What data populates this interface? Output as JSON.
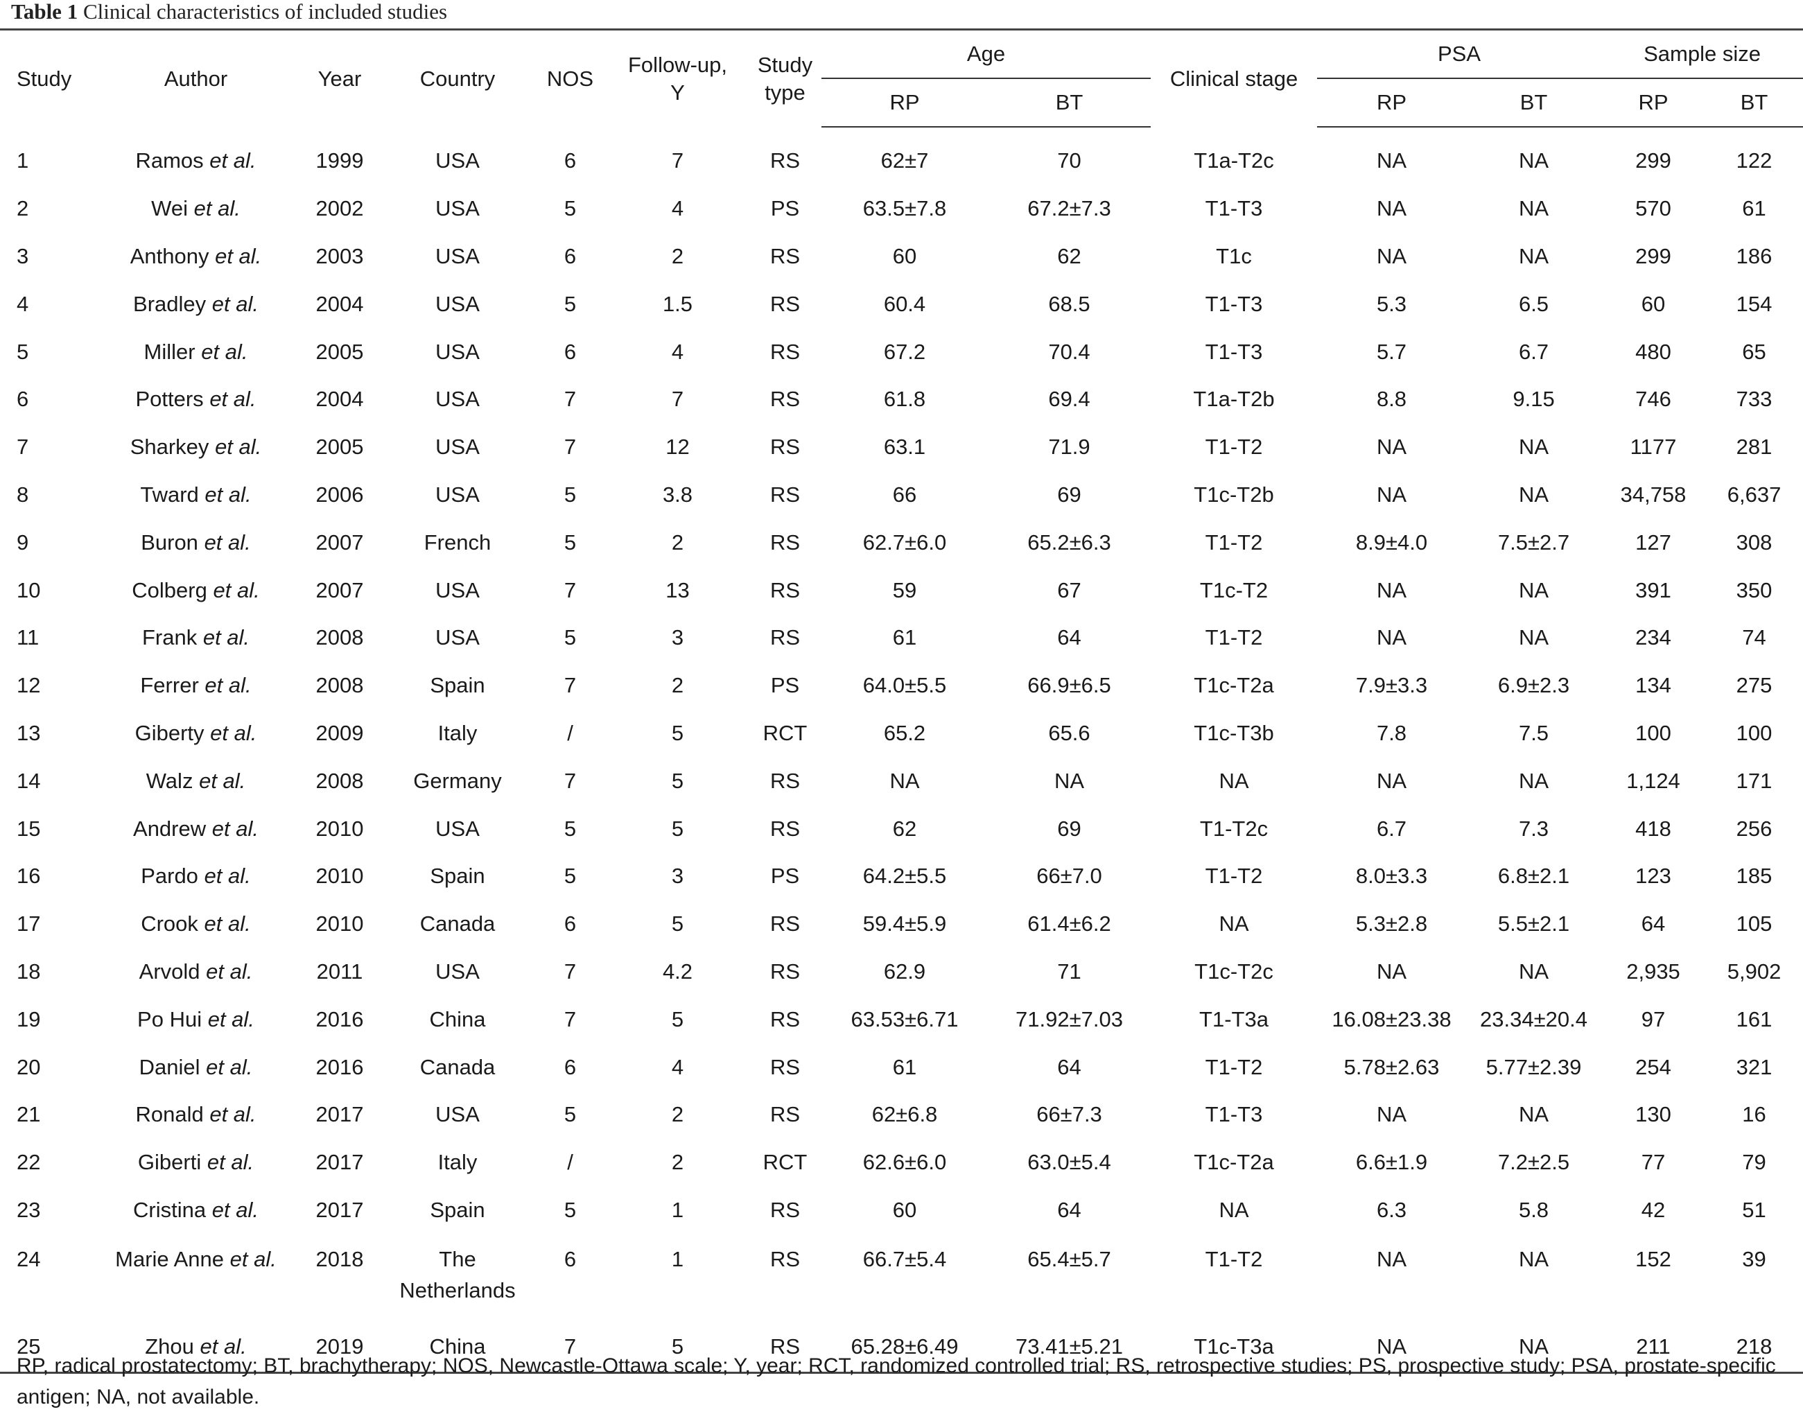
{
  "caption": {
    "label": "Table 1",
    "title": "Clinical characteristics of included studies"
  },
  "headers": {
    "study": "Study",
    "author": "Author",
    "year": "Year",
    "country": "Country",
    "nos": "NOS",
    "followup_line1": "Follow-up,",
    "followup_line2": "Y",
    "studytype_line1": "Study",
    "studytype_line2": "type",
    "age": "Age",
    "clinical_stage": "Clinical stage",
    "psa": "PSA",
    "sample_size": "Sample size",
    "rp": "RP",
    "bt": "BT"
  },
  "rows": [
    {
      "study": "1",
      "author": "Ramos",
      "year": "1999",
      "country": "USA",
      "country2": "",
      "nos": "6",
      "followup": "7",
      "type": "RS",
      "age_rp": "62±7",
      "age_bt": "70",
      "stage": "T1a-T2c",
      "psa_rp": "NA",
      "psa_bt": "NA",
      "n_rp": "299",
      "n_bt": "122"
    },
    {
      "study": "2",
      "author": "Wei",
      "year": "2002",
      "country": "USA",
      "country2": "",
      "nos": "5",
      "followup": "4",
      "type": "PS",
      "age_rp": "63.5±7.8",
      "age_bt": "67.2±7.3",
      "stage": "T1-T3",
      "psa_rp": "NA",
      "psa_bt": "NA",
      "n_rp": "570",
      "n_bt": "61"
    },
    {
      "study": "3",
      "author": "Anthony",
      "year": "2003",
      "country": "USA",
      "country2": "",
      "nos": "6",
      "followup": "2",
      "type": "RS",
      "age_rp": "60",
      "age_bt": "62",
      "stage": "T1c",
      "psa_rp": "NA",
      "psa_bt": "NA",
      "n_rp": "299",
      "n_bt": "186"
    },
    {
      "study": "4",
      "author": "Bradley",
      "year": "2004",
      "country": "USA",
      "country2": "",
      "nos": "5",
      "followup": "1.5",
      "type": "RS",
      "age_rp": "60.4",
      "age_bt": "68.5",
      "stage": "T1-T3",
      "psa_rp": "5.3",
      "psa_bt": "6.5",
      "n_rp": "60",
      "n_bt": "154"
    },
    {
      "study": "5",
      "author": "Miller",
      "year": "2005",
      "country": "USA",
      "country2": "",
      "nos": "6",
      "followup": "4",
      "type": "RS",
      "age_rp": "67.2",
      "age_bt": "70.4",
      "stage": "T1-T3",
      "psa_rp": "5.7",
      "psa_bt": "6.7",
      "n_rp": "480",
      "n_bt": "65"
    },
    {
      "study": "6",
      "author": "Potters",
      "year": "2004",
      "country": "USA",
      "country2": "",
      "nos": "7",
      "followup": "7",
      "type": "RS",
      "age_rp": "61.8",
      "age_bt": "69.4",
      "stage": "T1a-T2b",
      "psa_rp": "8.8",
      "psa_bt": "9.15",
      "n_rp": "746",
      "n_bt": "733"
    },
    {
      "study": "7",
      "author": "Sharkey",
      "year": "2005",
      "country": "USA",
      "country2": "",
      "nos": "7",
      "followup": "12",
      "type": "RS",
      "age_rp": "63.1",
      "age_bt": "71.9",
      "stage": "T1-T2",
      "psa_rp": "NA",
      "psa_bt": "NA",
      "n_rp": "1177",
      "n_bt": "281"
    },
    {
      "study": "8",
      "author": "Tward",
      "year": "2006",
      "country": "USA",
      "country2": "",
      "nos": "5",
      "followup": "3.8",
      "type": "RS",
      "age_rp": "66",
      "age_bt": "69",
      "stage": "T1c-T2b",
      "psa_rp": "NA",
      "psa_bt": "NA",
      "n_rp": "34,758",
      "n_bt": "6,637"
    },
    {
      "study": "9",
      "author": "Buron",
      "year": "2007",
      "country": "French",
      "country2": "",
      "nos": "5",
      "followup": "2",
      "type": "RS",
      "age_rp": "62.7±6.0",
      "age_bt": "65.2±6.3",
      "stage": "T1-T2",
      "psa_rp": "8.9±4.0",
      "psa_bt": "7.5±2.7",
      "n_rp": "127",
      "n_bt": "308"
    },
    {
      "study": "10",
      "author": "Colberg",
      "year": "2007",
      "country": "USA",
      "country2": "",
      "nos": "7",
      "followup": "13",
      "type": "RS",
      "age_rp": "59",
      "age_bt": "67",
      "stage": "T1c-T2",
      "psa_rp": "NA",
      "psa_bt": "NA",
      "n_rp": "391",
      "n_bt": "350"
    },
    {
      "study": "11",
      "author": "Frank",
      "year": "2008",
      "country": "USA",
      "country2": "",
      "nos": "5",
      "followup": "3",
      "type": "RS",
      "age_rp": "61",
      "age_bt": "64",
      "stage": "T1-T2",
      "psa_rp": "NA",
      "psa_bt": "NA",
      "n_rp": "234",
      "n_bt": "74"
    },
    {
      "study": "12",
      "author": "Ferrer",
      "year": "2008",
      "country": "Spain",
      "country2": "",
      "nos": "7",
      "followup": "2",
      "type": "PS",
      "age_rp": "64.0±5.5",
      "age_bt": "66.9±6.5",
      "stage": "T1c-T2a",
      "psa_rp": "7.9±3.3",
      "psa_bt": "6.9±2.3",
      "n_rp": "134",
      "n_bt": "275"
    },
    {
      "study": "13",
      "author": "Giberty",
      "year": "2009",
      "country": "Italy",
      "country2": "",
      "nos": "/",
      "followup": "5",
      "type": "RCT",
      "age_rp": "65.2",
      "age_bt": "65.6",
      "stage": "T1c-T3b",
      "psa_rp": "7.8",
      "psa_bt": "7.5",
      "n_rp": "100",
      "n_bt": "100"
    },
    {
      "study": "14",
      "author": "Walz",
      "year": "2008",
      "country": "Germany",
      "country2": "",
      "nos": "7",
      "followup": "5",
      "type": "RS",
      "age_rp": "NA",
      "age_bt": "NA",
      "stage": "NA",
      "psa_rp": "NA",
      "psa_bt": "NA",
      "n_rp": "1,124",
      "n_bt": "171"
    },
    {
      "study": "15",
      "author": "Andrew",
      "year": "2010",
      "country": "USA",
      "country2": "",
      "nos": "5",
      "followup": "5",
      "type": "RS",
      "age_rp": "62",
      "age_bt": "69",
      "stage": "T1-T2c",
      "psa_rp": "6.7",
      "psa_bt": "7.3",
      "n_rp": "418",
      "n_bt": "256"
    },
    {
      "study": "16",
      "author": "Pardo",
      "year": "2010",
      "country": "Spain",
      "country2": "",
      "nos": "5",
      "followup": "3",
      "type": "PS",
      "age_rp": "64.2±5.5",
      "age_bt": "66±7.0",
      "stage": "T1-T2",
      "psa_rp": "8.0±3.3",
      "psa_bt": "6.8±2.1",
      "n_rp": "123",
      "n_bt": "185"
    },
    {
      "study": "17",
      "author": "Crook",
      "year": "2010",
      "country": "Canada",
      "country2": "",
      "nos": "6",
      "followup": "5",
      "type": "RS",
      "age_rp": "59.4±5.9",
      "age_bt": "61.4±6.2",
      "stage": "NA",
      "psa_rp": "5.3±2.8",
      "psa_bt": "5.5±2.1",
      "n_rp": "64",
      "n_bt": "105"
    },
    {
      "study": "18",
      "author": "Arvold",
      "year": "2011",
      "country": "USA",
      "country2": "",
      "nos": "7",
      "followup": "4.2",
      "type": "RS",
      "age_rp": "62.9",
      "age_bt": "71",
      "stage": "T1c-T2c",
      "psa_rp": "NA",
      "psa_bt": "NA",
      "n_rp": "2,935",
      "n_bt": "5,902"
    },
    {
      "study": "19",
      "author": "Po Hui",
      "year": "2016",
      "country": "China",
      "country2": "",
      "nos": "7",
      "followup": "5",
      "type": "RS",
      "age_rp": "63.53±6.71",
      "age_bt": "71.92±7.03",
      "stage": "T1-T3a",
      "psa_rp": "16.08±23.38",
      "psa_bt": "23.34±20.4",
      "n_rp": "97",
      "n_bt": "161"
    },
    {
      "study": "20",
      "author": "Daniel",
      "year": "2016",
      "country": "Canada",
      "country2": "",
      "nos": "6",
      "followup": "4",
      "type": "RS",
      "age_rp": "61",
      "age_bt": "64",
      "stage": "T1-T2",
      "psa_rp": "5.78±2.63",
      "psa_bt": "5.77±2.39",
      "n_rp": "254",
      "n_bt": "321"
    },
    {
      "study": "21",
      "author": "Ronald",
      "year": "2017",
      "country": "USA",
      "country2": "",
      "nos": "5",
      "followup": "2",
      "type": "RS",
      "age_rp": "62±6.8",
      "age_bt": "66±7.3",
      "stage": "T1-T3",
      "psa_rp": "NA",
      "psa_bt": "NA",
      "n_rp": "130",
      "n_bt": "16"
    },
    {
      "study": "22",
      "author": "Giberti",
      "year": "2017",
      "country": "Italy",
      "country2": "",
      "nos": "/",
      "followup": "2",
      "type": "RCT",
      "age_rp": "62.6±6.0",
      "age_bt": "63.0±5.4",
      "stage": "T1c-T2a",
      "psa_rp": "6.6±1.9",
      "psa_bt": "7.2±2.5",
      "n_rp": "77",
      "n_bt": "79"
    },
    {
      "study": "23",
      "author": "Cristina",
      "year": "2017",
      "country": "Spain",
      "country2": "",
      "nos": "5",
      "followup": "1",
      "type": "RS",
      "age_rp": "60",
      "age_bt": "64",
      "stage": "NA",
      "psa_rp": "6.3",
      "psa_bt": "5.8",
      "n_rp": "42",
      "n_bt": "51"
    },
    {
      "study": "24",
      "author": "Marie Anne",
      "year": "2018",
      "country": "The",
      "country2": "Netherlands",
      "nos": "6",
      "followup": "1",
      "type": "RS",
      "age_rp": "66.7±5.4",
      "age_bt": "65.4±5.7",
      "stage": "T1-T2",
      "psa_rp": "NA",
      "psa_bt": "NA",
      "n_rp": "152",
      "n_bt": "39"
    },
    {
      "study": "25",
      "author": "Zhou",
      "year": "2019",
      "country": "China",
      "country2": "",
      "nos": "7",
      "followup": "5",
      "type": "RS",
      "age_rp": "65.28±6.49",
      "age_bt": "73.41±5.21",
      "stage": "T1c-T3a",
      "psa_rp": "NA",
      "psa_bt": "NA",
      "n_rp": "211",
      "n_bt": "218"
    }
  ],
  "etal": "et al.",
  "footnote": "RP, radical prostatectomy; BT, brachytherapy; NOS, Newcastle-Ottawa scale; Y, year; RCT, randomized controlled trial; RS, retrospective studies; PS, prospective study; PSA, prostate-specific antigen; NA, not available."
}
